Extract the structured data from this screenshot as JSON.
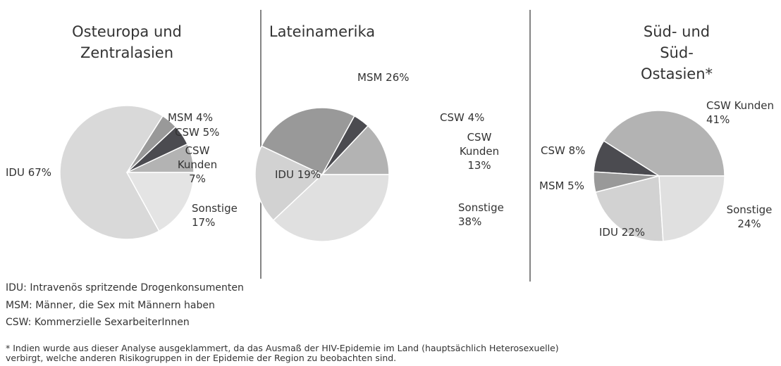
{
  "chart_data": [
    {
      "type": "pie",
      "title": "Osteuropa und\nZentralasien",
      "values": [
        7,
        5,
        4,
        67,
        17
      ],
      "value_labels": [
        "CSW\nKunden\n7%",
        "CSW 5%",
        "MSM 4%",
        "IDU 67%",
        "Sonstige\n17%"
      ],
      "colors": [
        "#b3b3b3",
        "#4b4b50",
        "#999999",
        "#d9d9d9",
        "#e4e4e4"
      ]
    },
    {
      "type": "pie",
      "title": "Lateinamerika",
      "values": [
        13,
        4,
        26,
        19,
        38
      ],
      "value_labels": [
        "CSW\nKunden\n13%",
        "CSW 4%",
        "MSM 26%",
        "IDU 19%",
        "Sonstige\n38%"
      ],
      "colors": [
        "#b3b3b3",
        "#4b4b50",
        "#999999",
        "#d2d2d2",
        "#e0e0e0"
      ]
    },
    {
      "type": "pie",
      "title": "Süd- und Süd-Ostasien*",
      "values": [
        41,
        8,
        5,
        22,
        24
      ],
      "value_labels": [
        "CSW Kunden\n41%",
        "CSW 8%",
        "MSM 5%",
        "IDU 22%",
        "Sonstige\n24%"
      ],
      "colors": [
        "#b3b3b3",
        "#4b4b50",
        "#999999",
        "#d2d2d2",
        "#e0e0e0"
      ]
    }
  ],
  "notes": [
    "IDU: Intravenös spritzende Drogenkonsumenten",
    "MSM: Männer, die Sex mit Männern haben",
    "CSW: Kommerzielle SexarbeiterInnen"
  ],
  "footnote": "* Indien wurde aus dieser Analyse ausgeklammert, da das Ausmaß der HIV-Epidemie im Land (hauptsächlich Heterosexuelle) verbirgt, welche anderen Risikogruppen in der Epidemie der Region zu beobachten sind."
}
